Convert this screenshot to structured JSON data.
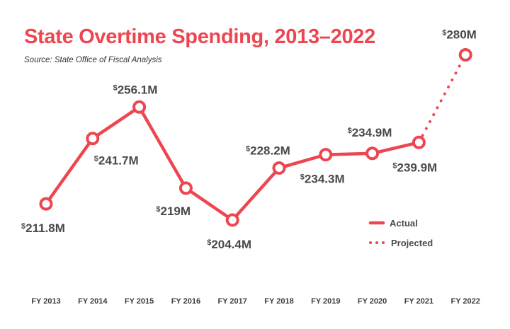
{
  "chart_data": {
    "type": "line",
    "title": "State Overtime Spending, 2013–2022",
    "subtitle": "Source: State Office of Fiscal Analysis",
    "categories": [
      "FY 2013",
      "FY 2014",
      "FY 2015",
      "FY 2016",
      "FY 2017",
      "FY 2018",
      "FY 2019",
      "FY 2020",
      "FY 2021",
      "FY 2022"
    ],
    "series": [
      {
        "name": "Actual",
        "style": "solid",
        "values": [
          211.8,
          241.7,
          256.1,
          219,
          204.4,
          228.2,
          234.3,
          234.9,
          239.9,
          null
        ],
        "labels": [
          "211.8M",
          "241.7M",
          "256.1M",
          "219M",
          "204.4M",
          "228.2M",
          "234.3M",
          "234.9M",
          "239.9M",
          null
        ]
      },
      {
        "name": "Projected",
        "style": "dotted",
        "values": [
          null,
          null,
          null,
          null,
          null,
          null,
          null,
          null,
          239.9,
          280
        ],
        "labels": [
          null,
          null,
          null,
          null,
          null,
          null,
          null,
          null,
          null,
          "280M"
        ]
      }
    ],
    "label_prefix": "$",
    "ylim": [
      195,
      285
    ],
    "grid": false,
    "legend": "bottom-right",
    "colors": {
      "line": "#ee4650",
      "marker_fill": "#ffffff",
      "label": "#4a4a4a"
    }
  }
}
